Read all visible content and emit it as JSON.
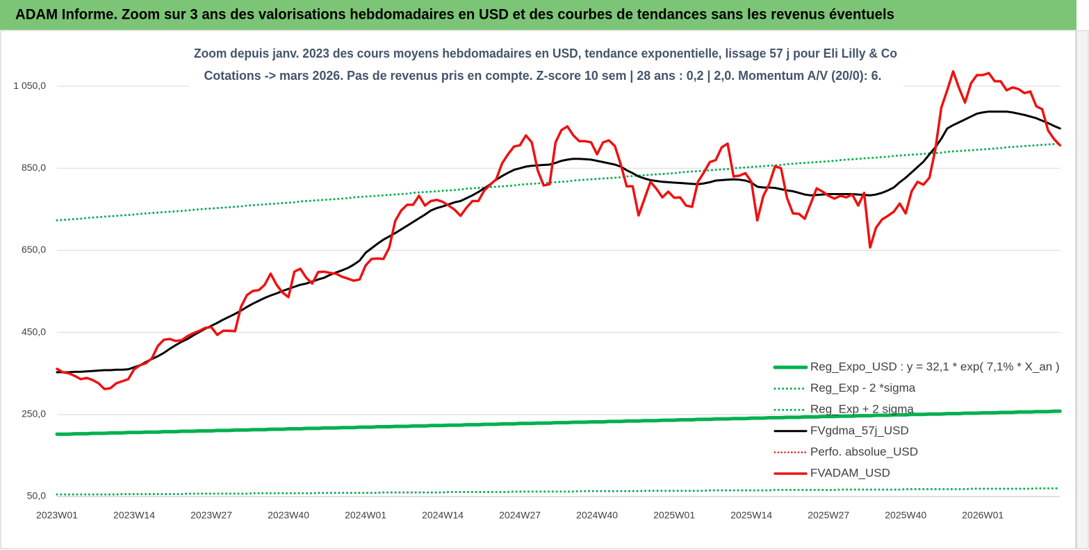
{
  "header": {
    "title": "ADAM Informe. Zoom sur 3 ans des valorisations hebdomadaires en USD et des courbes de tendances sans les revenus éventuels"
  },
  "chart_data": {
    "type": "line",
    "title": "Zoom depuis janv. 2023 des cours moyens hebdomadaires en USD, tendance exponentielle, lissage 57 j pour Eli Lilly & Co",
    "subtitle": "Cotations -> mars 2026. Pas de revenus pris en compte. Z-score 10 sem | 28 ans : 0,2 | 2,0. Momentum A/V (20/0): 6.",
    "ylim": [
      50,
      1150
    ],
    "yticks": [
      {
        "value": 50,
        "label": "50,0"
      },
      {
        "value": 250,
        "label": "250,0"
      },
      {
        "value": 450,
        "label": "450,0"
      },
      {
        "value": 650,
        "label": "650,0"
      },
      {
        "value": 850,
        "label": "850,0"
      },
      {
        "value": 1050,
        "label": "1 050,0"
      }
    ],
    "grid": true,
    "legend": "lower right",
    "categories": [
      "2023W01",
      null,
      null,
      null,
      null,
      null,
      null,
      null,
      null,
      null,
      null,
      null,
      null,
      "2023W14",
      null,
      null,
      null,
      null,
      null,
      null,
      null,
      null,
      null,
      null,
      null,
      null,
      "2023W27",
      null,
      null,
      null,
      null,
      null,
      null,
      null,
      null,
      null,
      null,
      null,
      null,
      "2023W40",
      null,
      null,
      null,
      null,
      null,
      null,
      null,
      null,
      null,
      null,
      null,
      null,
      "2024W01",
      null,
      null,
      null,
      null,
      null,
      null,
      null,
      null,
      null,
      null,
      null,
      null,
      "2024W14",
      null,
      null,
      null,
      null,
      null,
      null,
      null,
      null,
      null,
      null,
      null,
      null,
      "2024W27",
      null,
      null,
      null,
      null,
      null,
      null,
      null,
      null,
      null,
      null,
      null,
      null,
      "2024W40",
      null,
      null,
      null,
      null,
      null,
      null,
      null,
      null,
      null,
      null,
      null,
      null,
      "2025W01",
      null,
      null,
      null,
      null,
      null,
      null,
      null,
      null,
      null,
      null,
      null,
      null,
      "2025W14",
      null,
      null,
      null,
      null,
      null,
      null,
      null,
      null,
      null,
      null,
      null,
      null,
      "2025W27",
      null,
      null,
      null,
      null,
      null,
      null,
      null,
      null,
      null,
      null,
      null,
      null,
      "2025W40",
      null,
      null,
      null,
      null,
      null,
      null,
      null,
      null,
      null,
      null,
      null,
      null,
      "2026W01",
      null,
      null,
      null,
      null,
      null,
      null,
      null,
      null,
      null,
      null,
      null,
      null,
      null
    ],
    "series": [
      {
        "name": "Reg_Expo_USD : y = 32,1 * exp( 7,1% *  X_an )",
        "color": "#00b050",
        "style": "solid",
        "linewidth": 5,
        "values": [
          202,
          202,
          202,
          203,
          203,
          203,
          204,
          204,
          204,
          205,
          205,
          205,
          206,
          206,
          206,
          207,
          207,
          207,
          208,
          208,
          208,
          209,
          209,
          209,
          210,
          210,
          210,
          211,
          211,
          211,
          212,
          212,
          212,
          213,
          213,
          213,
          214,
          214,
          214,
          215,
          215,
          215,
          216,
          216,
          216,
          217,
          217,
          217,
          218,
          218,
          218,
          219,
          219,
          219,
          220,
          220,
          220,
          221,
          221,
          221,
          222,
          222,
          222,
          223,
          223,
          223,
          224,
          224,
          224,
          225,
          225,
          225,
          226,
          226,
          226,
          227,
          227,
          227,
          228,
          228,
          228,
          229,
          229,
          229,
          230,
          230,
          230,
          231,
          231,
          231,
          232,
          232,
          232,
          233,
          233,
          233,
          234,
          234,
          234,
          235,
          235,
          235,
          236,
          236,
          236,
          237,
          237,
          237,
          238,
          238,
          238,
          239,
          239,
          239,
          240,
          240,
          240,
          241,
          241,
          241,
          242,
          242,
          242,
          243,
          243,
          243,
          244,
          244,
          244,
          245,
          245,
          245,
          246,
          246,
          246,
          247,
          247,
          247,
          248,
          248,
          248,
          249,
          249,
          249,
          250,
          250,
          250,
          251,
          251,
          251,
          252,
          252,
          252,
          253,
          253,
          253,
          254,
          254,
          254,
          255,
          255,
          255,
          256,
          256,
          256,
          257,
          257,
          257,
          258,
          258
        ]
      },
      {
        "name": "Reg_Exp - 2 *sigma",
        "color": "#00b050",
        "style": "dotted",
        "linewidth": 3,
        "values": [
          55,
          55,
          55,
          55,
          55,
          55,
          55,
          55,
          55,
          55,
          55,
          56,
          56,
          56,
          56,
          56,
          56,
          56,
          56,
          56,
          56,
          56,
          57,
          57,
          57,
          57,
          57,
          57,
          57,
          57,
          57,
          57,
          57,
          58,
          58,
          58,
          58,
          58,
          58,
          58,
          58,
          58,
          58,
          58,
          59,
          59,
          59,
          59,
          59,
          59,
          59,
          59,
          59,
          59,
          59,
          60,
          60,
          60,
          60,
          60,
          60,
          60,
          60,
          60,
          60,
          60,
          61,
          61,
          61,
          61,
          61,
          61,
          61,
          61,
          61,
          61,
          61,
          62,
          62,
          62,
          62,
          62,
          62,
          62,
          62,
          62,
          62,
          62,
          63,
          63,
          63,
          63,
          63,
          63,
          63,
          63,
          63,
          63,
          63,
          64,
          64,
          64,
          64,
          64,
          64,
          64,
          64,
          64,
          64,
          64,
          65,
          65,
          65,
          65,
          65,
          65,
          65,
          65,
          65,
          65,
          65,
          66,
          66,
          66,
          66,
          66,
          66,
          66,
          66,
          66,
          66,
          66,
          67,
          67,
          67,
          67,
          67,
          67,
          67,
          67,
          67,
          67,
          67,
          68,
          68,
          68,
          68,
          68,
          68,
          68,
          68,
          68,
          68,
          68,
          69,
          69,
          69,
          69,
          69,
          69,
          69,
          69,
          69,
          69,
          69,
          70,
          70,
          70,
          70,
          70
        ]
      },
      {
        "name": "Reg_Exp + 2 sigma",
        "color": "#00b050",
        "style": "dotted",
        "linewidth": 3,
        "values": [
          723,
          724,
          725,
          726,
          727,
          729,
          730,
          731,
          732,
          733,
          734,
          735,
          736,
          737,
          739,
          740,
          741,
          742,
          743,
          744,
          745,
          746,
          747,
          749,
          750,
          751,
          752,
          753,
          754,
          755,
          756,
          757,
          759,
          760,
          761,
          762,
          763,
          764,
          765,
          766,
          767,
          769,
          770,
          771,
          772,
          773,
          774,
          775,
          776,
          777,
          779,
          780,
          781,
          782,
          783,
          784,
          785,
          786,
          787,
          788,
          790,
          791,
          792,
          793,
          794,
          795,
          796,
          797,
          798,
          800,
          801,
          802,
          803,
          804,
          805,
          806,
          807,
          808,
          810,
          811,
          812,
          813,
          814,
          815,
          816,
          817,
          818,
          820,
          821,
          822,
          823,
          824,
          825,
          826,
          827,
          828,
          830,
          831,
          832,
          833,
          834,
          835,
          836,
          837,
          838,
          840,
          841,
          842,
          843,
          844,
          845,
          846,
          847,
          848,
          850,
          851,
          852,
          853,
          854,
          855,
          856,
          857,
          858,
          860,
          861,
          862,
          863,
          864,
          865,
          866,
          867,
          868,
          870,
          871,
          872,
          873,
          874,
          875,
          876,
          877,
          878,
          880,
          881,
          882,
          883,
          884,
          885,
          886,
          887,
          888,
          890,
          891,
          892,
          893,
          894,
          895,
          896,
          897,
          898,
          899,
          901,
          902,
          903,
          904,
          905,
          906,
          907,
          908,
          909,
          911
        ]
      },
      {
        "name": "FVgdma_57j_USD",
        "color": "#000000",
        "style": "solid",
        "linewidth": 3,
        "values": [
          353,
          353,
          353,
          354,
          354,
          355,
          356,
          357,
          358,
          358,
          359,
          359,
          360,
          365,
          370,
          378,
          385,
          392,
          400,
          410,
          419,
          427,
          434,
          443,
          451,
          459,
          466,
          473,
          481,
          488,
          495,
          503,
          512,
          520,
          527,
          534,
          540,
          545,
          551,
          556,
          561,
          566,
          569,
          574,
          579,
          583,
          590,
          596,
          601,
          607,
          615,
          625,
          644,
          655,
          666,
          676,
          684,
          692,
          701,
          710,
          719,
          728,
          737,
          747,
          753,
          757,
          762,
          767,
          770,
          777,
          784,
          792,
          801,
          811,
          822,
          831,
          839,
          846,
          850,
          854,
          856,
          857,
          858,
          859,
          863,
          868,
          871,
          873,
          873,
          872,
          871,
          868,
          865,
          862,
          859,
          854,
          845,
          838,
          830,
          825,
          821,
          819,
          817,
          816,
          815,
          814,
          813,
          812,
          811,
          813,
          816,
          820,
          821,
          822,
          823,
          822,
          820,
          815,
          805,
          803,
          803,
          802,
          799,
          796,
          794,
          790,
          786,
          784,
          785,
          786,
          787,
          787,
          787,
          787,
          787,
          786,
          785,
          784,
          786,
          790,
          796,
          803,
          816,
          827,
          840,
          853,
          866,
          884,
          901,
          922,
          947,
          955,
          962,
          969,
          976,
          983,
          986,
          988,
          988,
          988,
          988,
          986,
          983,
          980,
          976,
          972,
          966,
          960,
          953,
          947
        ]
      },
      {
        "name": "Perfo. absolue_USD",
        "color": "#ee1111",
        "style": "dotted",
        "linewidth": 2.5
      },
      {
        "name": "FVADAM_USD",
        "color": "#ee1111",
        "style": "solid",
        "linewidth": 3.5,
        "values": [
          361,
          353,
          350,
          344,
          336,
          339,
          334,
          326,
          312,
          314,
          326,
          331,
          336,
          360,
          370,
          375,
          387,
          417,
          432,
          434,
          429,
          431,
          441,
          448,
          454,
          461,
          463,
          444,
          454,
          454,
          453,
          512,
          541,
          551,
          553,
          566,
          593,
          566,
          547,
          536,
          598,
          605,
          583,
          569,
          597,
          598,
          595,
          593,
          586,
          581,
          576,
          579,
          613,
          629,
          630,
          629,
          657,
          722,
          747,
          761,
          761,
          783,
          759,
          770,
          773,
          768,
          759,
          749,
          734,
          754,
          770,
          770,
          796,
          810,
          823,
          862,
          884,
          903,
          906,
          930,
          913,
          845,
          808,
          811,
          913,
          943,
          952,
          930,
          916,
          916,
          913,
          884,
          913,
          918,
          904,
          859,
          806,
          806,
          735,
          776,
          817,
          800,
          779,
          793,
          778,
          779,
          759,
          756,
          817,
          840,
          865,
          870,
          901,
          910,
          830,
          832,
          838,
          817,
          723,
          782,
          811,
          855,
          850,
          778,
          740,
          739,
          727,
          764,
          801,
          793,
          783,
          776,
          783,
          779,
          786,
          759,
          790,
          657,
          705,
          725,
          734,
          744,
          764,
          740,
          794,
          817,
          810,
          827,
          896,
          998,
          1040,
          1086,
          1045,
          1010,
          1057,
          1077,
          1077,
          1082,
          1062,
          1062,
          1040,
          1047,
          1043,
          1033,
          1037,
          1001,
          994,
          942,
          921,
          906
        ]
      }
    ]
  }
}
